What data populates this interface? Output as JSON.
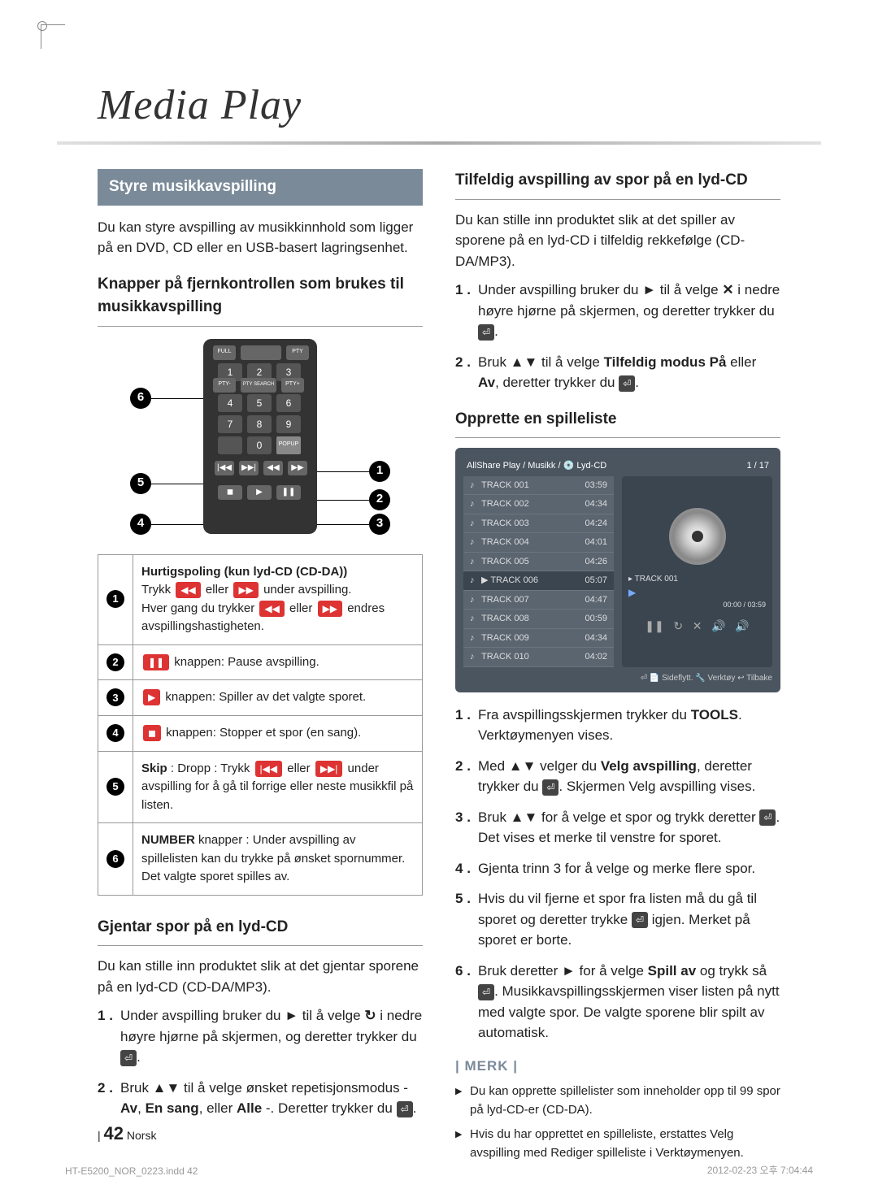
{
  "title": "Media Play",
  "leftCol": {
    "sectionHeader": "Styre musikkavspilling",
    "intro": "Du kan styre avspilling av musikkinnhold som ligger på en DVD, CD eller en USB-basert lagringsenhet.",
    "remoteTitle": "Knapper på fjernkontrollen som brukes til musikkavspilling",
    "funcTable": [
      {
        "n": "1",
        "html": "<b>Hurtigspoling (kun lyd-CD (CD-DA))</b><br>Trykk <span class='icon-btn'>◀◀</span> eller <span class='icon-btn'>▶▶</span> under avspilling.<br>Hver gang du trykker <span class='icon-btn'>◀◀</span> eller <span class='icon-btn'>▶▶</span> endres avspillingshastigheten."
      },
      {
        "n": "2",
        "html": "<span class='icon-btn'>❚❚</span> knappen: Pause avspilling."
      },
      {
        "n": "3",
        "html": "<span class='icon-btn'>▶</span> knappen: Spiller av det valgte sporet."
      },
      {
        "n": "4",
        "html": "<span class='icon-btn'>◼</span> knappen: Stopper et spor (en sang)."
      },
      {
        "n": "5",
        "html": "<b>Skip</b> : Dropp : Trykk <span class='icon-btn'>|◀◀</span> eller <span class='icon-btn'>▶▶|</span> under avspilling for å gå til forrige eller neste musikkfil på listen."
      },
      {
        "n": "6",
        "html": "<b>NUMBER</b> knapper : Under avspilling av spillelisten kan du trykke på ønsket spornummer. Det valgte sporet spilles av."
      }
    ],
    "repeatTitle": "Gjentar spor på en lyd-CD",
    "repeatIntro": "Du kan stille inn produktet slik at det gjentar sporene på en lyd-CD (CD-DA/MP3).",
    "repeatSteps": [
      "Under avspilling bruker du ► til å velge <span style='font-weight:bold'>↻</span> i nedre høyre hjørne på skjermen, og deretter trykker du <span class='icon-enter'>⏎</span>.",
      "Bruk ▲▼ til å velge ønsket repetisjonsmodus - <b>Av</b>, <b>En sang</b>, eller <b>Alle</b> -. Deretter trykker du <span class='icon-enter'>⏎</span>."
    ]
  },
  "rightCol": {
    "randomTitle": "Tilfeldig avspilling av spor på en lyd-CD",
    "randomIntro": "Du kan stille inn produktet slik at det spiller av sporene på en lyd-CD i tilfeldig rekkefølge (CD-DA/MP3).",
    "randomSteps": [
      "Under avspilling bruker du ► til å velge <b>✕</b> i nedre høyre hjørne på skjermen, og deretter trykker du <span class='icon-enter'>⏎</span>.",
      "Bruk ▲▼ til å velge <b>Tilfeldig modus På</b> eller <b>Av</b>, deretter trykker du <span class='icon-enter'>⏎</span>."
    ],
    "playlistTitle": "Opprette en spilleliste",
    "ui": {
      "header": "AllShare Play / Musikk / 💿 Lyd-CD",
      "count": "1 / 17",
      "tracks": [
        {
          "name": "TRACK 001",
          "dur": "03:59",
          "sel": false
        },
        {
          "name": "TRACK 002",
          "dur": "04:34",
          "sel": false
        },
        {
          "name": "TRACK 003",
          "dur": "04:24",
          "sel": false
        },
        {
          "name": "TRACK 004",
          "dur": "04:01",
          "sel": false
        },
        {
          "name": "TRACK 005",
          "dur": "04:26",
          "sel": false
        },
        {
          "name": "TRACK 006",
          "dur": "05:07",
          "sel": true
        },
        {
          "name": "TRACK 007",
          "dur": "04:47",
          "sel": false
        },
        {
          "name": "TRACK 008",
          "dur": "00:59",
          "sel": false
        },
        {
          "name": "TRACK 009",
          "dur": "04:34",
          "sel": false
        },
        {
          "name": "TRACK 010",
          "dur": "04:02",
          "sel": false
        }
      ],
      "nowPlaying": "TRACK 001",
      "time": "00:00 / 03:59",
      "footer": "⏎ 📄 Sideflytt.  🔧 Verktøy  ↩ Tilbake"
    },
    "playlistSteps": [
      "Fra avspillingsskjermen trykker du <b>TOOLS</b>. Verktøymenyen vises.",
      "Med ▲▼ velger du <b>Velg avspilling</b>, deretter trykker du <span class='icon-enter'>⏎</span>. Skjermen Velg avspilling vises.",
      "Bruk ▲▼ for å velge et spor og trykk deretter <span class='icon-enter'>⏎</span>. Det vises et merke til venstre for sporet.",
      "Gjenta trinn 3 for å velge og merke flere spor.",
      "Hvis du vil fjerne et spor fra listen må du gå til sporet og deretter trykke <span class='icon-enter'>⏎</span> igjen. Merket på sporet er borte.",
      "Bruk deretter ► for å velge <b>Spill av</b> og trykk så <span class='icon-enter'>⏎</span>. Musikkavspillingsskjermen viser listen på nytt med valgte spor. De valgte sporene blir spilt av automatisk."
    ],
    "noteLabel": "| MERK |",
    "notes": [
      "Du kan opprette spillelister som inneholder opp til 99 spor på lyd-CD-er (CD-DA).",
      "Hvis du har opprettet en spilleliste, erstattes Velg avspilling med Rediger spilleliste i Verktøymenyen."
    ]
  },
  "pageNum": "42",
  "pageLang": "Norsk",
  "footerLeft": "HT-E5200_NOR_0223.indd   42",
  "footerRight": "2012-02-23   오후 7:04:44"
}
